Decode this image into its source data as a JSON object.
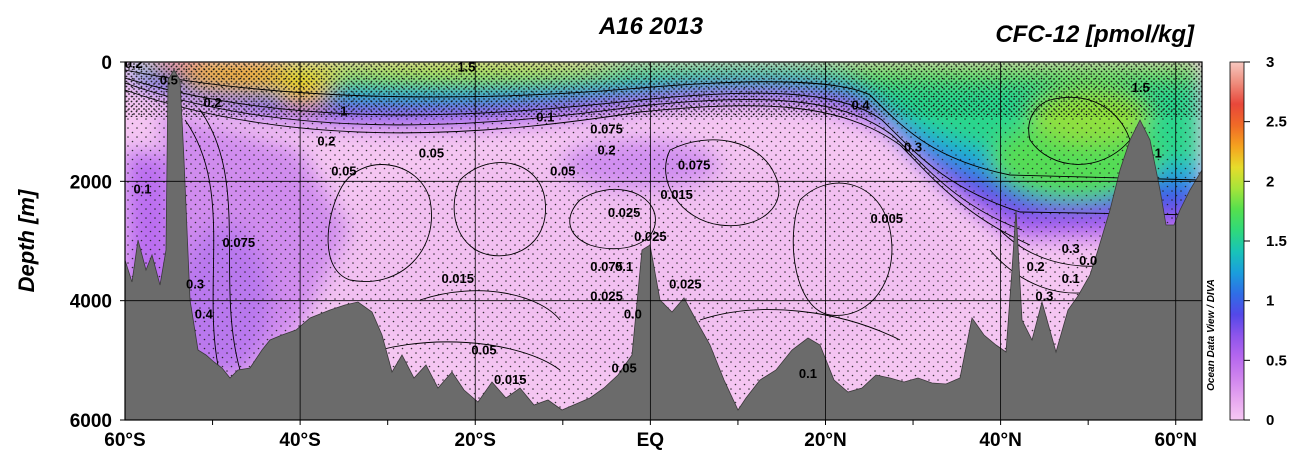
{
  "chart_data": {
    "type": "heatmap",
    "title": "A16 2013",
    "variable_label": "CFC-12 [pmol/kg]",
    "ylabel": "Depth [m]",
    "xlabel": "",
    "y_ticks": [
      "0",
      "2000",
      "4000",
      "6000"
    ],
    "y_tick_values": [
      0,
      2000,
      4000,
      6000
    ],
    "ylim": [
      6000,
      0
    ],
    "x_ticks": [
      "60°S",
      "40°S",
      "20°S",
      "EQ",
      "20°N",
      "40°N",
      "60°N"
    ],
    "x_tick_values": [
      -60,
      -40,
      -20,
      0,
      20,
      40,
      60
    ],
    "xlim": [
      -60,
      63
    ],
    "grid": true,
    "colorbar": {
      "ticks": [
        "0",
        "0.5",
        "1",
        "1.5",
        "2",
        "2.5",
        "3"
      ],
      "tick_values": [
        0,
        0.5,
        1,
        1.5,
        2,
        2.5,
        3
      ],
      "range": [
        0,
        3
      ],
      "colors": [
        "#f7c8f4",
        "#e6a6f0",
        "#cf84ee",
        "#b567ee",
        "#8e55ec",
        "#5448e8",
        "#2f6ee6",
        "#1a9edc",
        "#19c3b8",
        "#2fd97b",
        "#55e04e",
        "#a6e43a",
        "#e6dc2b",
        "#f5a21f",
        "#f06a27",
        "#e8473a",
        "#ee8c7c",
        "#f7c8c0"
      ]
    },
    "credit": "Ocean Data View / DIVA",
    "contour_labels": [
      {
        "text": "0.2",
        "x": -59,
        "y": 100
      },
      {
        "text": "0.5",
        "x": -55,
        "y": 380
      },
      {
        "text": "1.5",
        "x": -21,
        "y": 160
      },
      {
        "text": "1",
        "x": -35,
        "y": 900
      },
      {
        "text": "0.2",
        "x": -50,
        "y": 750
      },
      {
        "text": "0.1",
        "x": -58,
        "y": 2200
      },
      {
        "text": "0.2",
        "x": -37,
        "y": 1400
      },
      {
        "text": "0.05",
        "x": -25,
        "y": 1600
      },
      {
        "text": "0.05",
        "x": -35,
        "y": 1900
      },
      {
        "text": "0.1",
        "x": -12,
        "y": 1000
      },
      {
        "text": "0.075",
        "x": -5,
        "y": 1200
      },
      {
        "text": "0.2",
        "x": -5,
        "y": 1550
      },
      {
        "text": "0.05",
        "x": -10,
        "y": 1900
      },
      {
        "text": "0.075",
        "x": 5,
        "y": 1800
      },
      {
        "text": "0.015",
        "x": 3,
        "y": 2300
      },
      {
        "text": "0.025",
        "x": -3,
        "y": 2600
      },
      {
        "text": "0.075",
        "x": -47,
        "y": 3100
      },
      {
        "text": "0.015",
        "x": -22,
        "y": 3700
      },
      {
        "text": "0.075",
        "x": -5,
        "y": 3500
      },
      {
        "text": "0.1",
        "x": -3,
        "y": 3500
      },
      {
        "text": "0.025",
        "x": 0,
        "y": 3000
      },
      {
        "text": "0.025",
        "x": 4,
        "y": 3800
      },
      {
        "text": "0.025",
        "x": -5,
        "y": 4000
      },
      {
        "text": "0.0",
        "x": -2,
        "y": 4300
      },
      {
        "text": "0.3",
        "x": -52,
        "y": 3800
      },
      {
        "text": "0.4",
        "x": -51,
        "y": 4300
      },
      {
        "text": "0.05",
        "x": -19,
        "y": 4900
      },
      {
        "text": "0.015",
        "x": -16,
        "y": 5400
      },
      {
        "text": "0.05",
        "x": -3,
        "y": 5200
      },
      {
        "text": "0.4",
        "x": 24,
        "y": 800
      },
      {
        "text": "0.3",
        "x": 30,
        "y": 1500
      },
      {
        "text": "0.005",
        "x": 27,
        "y": 2700
      },
      {
        "text": "0.2",
        "x": 44,
        "y": 3500
      },
      {
        "text": "0.1",
        "x": 48,
        "y": 3700
      },
      {
        "text": "0.3",
        "x": 48,
        "y": 3200
      },
      {
        "text": "0.3",
        "x": 45,
        "y": 4000
      },
      {
        "text": "0.0",
        "x": 50,
        "y": 3400
      },
      {
        "text": "1.5",
        "x": 56,
        "y": 500
      },
      {
        "text": "1",
        "x": 58,
        "y": 1600
      },
      {
        "text": "0.1",
        "x": 18,
        "y": 5300
      }
    ]
  }
}
